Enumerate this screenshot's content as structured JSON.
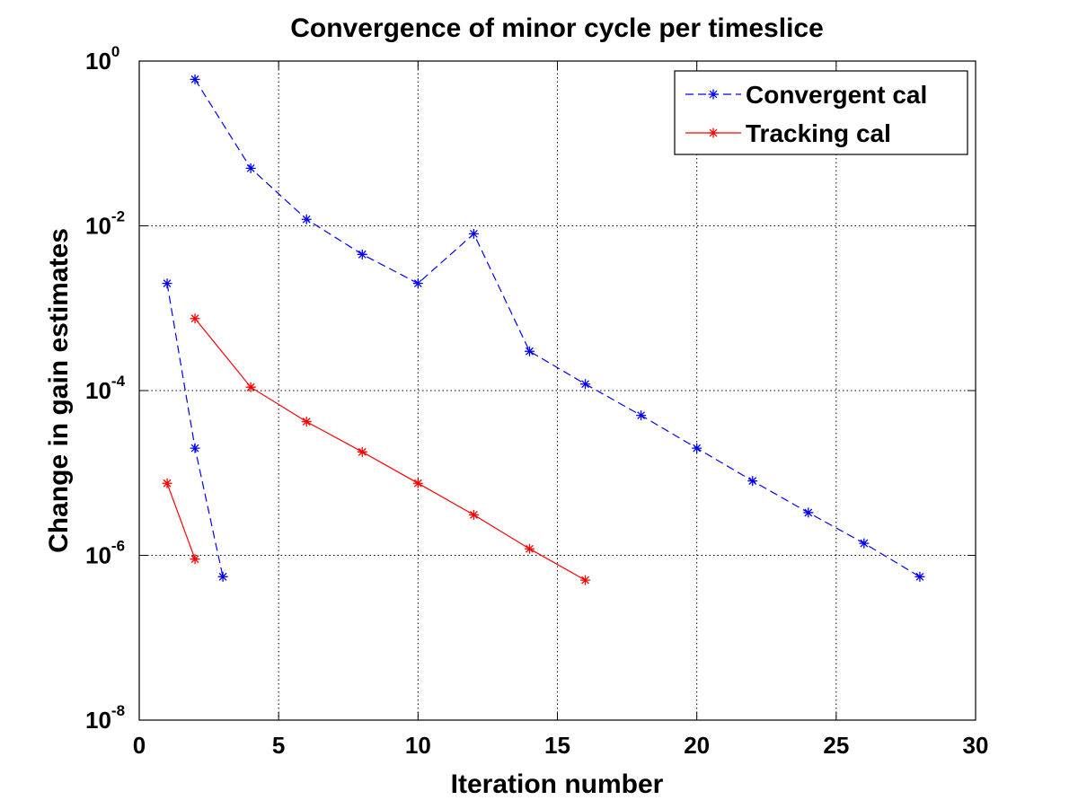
{
  "chart_data": {
    "type": "line",
    "title": "Convergence of minor cycle per timeslice",
    "xlabel": "Iteration number",
    "ylabel": "Change in gain estimates",
    "xlim": [
      0,
      30
    ],
    "ylim": [
      1e-08,
      1
    ],
    "yscale": "log",
    "grid": true,
    "legend_position": "top-right",
    "xticks": [
      0,
      5,
      10,
      15,
      20,
      25,
      30
    ],
    "yticks": [
      {
        "base": "10",
        "exp": "-8",
        "value": 1e-08
      },
      {
        "base": "10",
        "exp": "-6",
        "value": 1e-06
      },
      {
        "base": "10",
        "exp": "-4",
        "value": 0.0001
      },
      {
        "base": "10",
        "exp": "-2",
        "value": 0.01
      },
      {
        "base": "10",
        "exp": "0",
        "value": 1
      }
    ],
    "series": [
      {
        "name": "Convergent cal",
        "color": "#0000ff",
        "dash": "dashed",
        "marker": "asterisk",
        "segments": [
          {
            "x": [
              1,
              2,
              3
            ],
            "y": [
              0.002,
              2e-05,
              5.5e-07
            ]
          },
          {
            "x": [
              2,
              4,
              6,
              8,
              10,
              12,
              14,
              16,
              18,
              20,
              22,
              24,
              26,
              28
            ],
            "y": [
              0.6,
              0.05,
              0.012,
              0.0045,
              0.002,
              0.008,
              0.0003,
              0.00012,
              5e-05,
              2e-05,
              8e-06,
              3.3e-06,
              1.4e-06,
              5.5e-07
            ]
          }
        ]
      },
      {
        "name": "Tracking cal",
        "color": "#ff0000",
        "dash": "solid",
        "marker": "asterisk",
        "segments": [
          {
            "x": [
              1,
              2
            ],
            "y": [
              7.5e-06,
              9e-07
            ]
          },
          {
            "x": [
              2,
              4,
              6,
              8,
              10,
              12,
              14,
              16
            ],
            "y": [
              0.00075,
              0.00011,
              4.2e-05,
              1.8e-05,
              7.5e-06,
              3.1e-06,
              1.2e-06,
              5e-07
            ]
          }
        ]
      }
    ]
  }
}
